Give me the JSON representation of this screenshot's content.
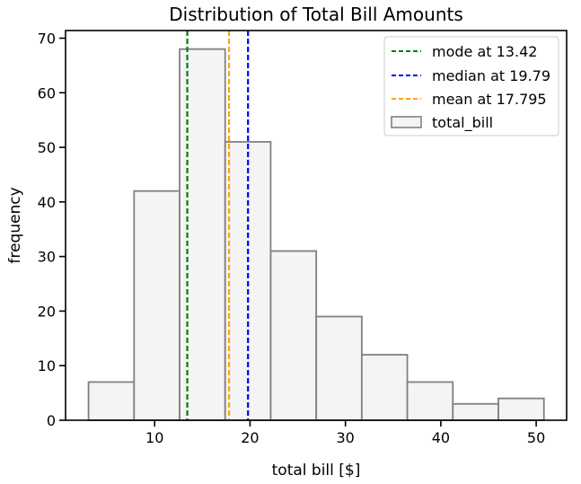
{
  "chart_data": {
    "type": "bar",
    "title": "Distribution of Total Bill Amounts",
    "xlabel": "total bill [$]",
    "ylabel": "frequency",
    "xlim": [
      0.66,
      53.19
    ],
    "ylim": [
      0,
      71.4
    ],
    "xticks": [
      10,
      20,
      30,
      40,
      50
    ],
    "yticks": [
      0,
      10,
      20,
      30,
      40,
      50,
      60,
      70
    ],
    "grid": false,
    "legend_position": "top-right",
    "histogram": {
      "name": "total_bill",
      "bin_edges": [
        3.07,
        7.844,
        12.618,
        17.392,
        22.166,
        26.94,
        31.714,
        36.488,
        41.262,
        46.036,
        50.81
      ],
      "counts": [
        7,
        42,
        68,
        51,
        31,
        19,
        12,
        7,
        3,
        4
      ],
      "fill": "#f4f4f4",
      "edge": "#808080"
    },
    "reference_lines": [
      {
        "label": "mode at 13.42",
        "x": 13.42,
        "color": "#008000"
      },
      {
        "label": "median at 19.79",
        "x": 19.79,
        "color": "#0000ff"
      },
      {
        "label": "mean at 17.795",
        "x": 17.795,
        "color": "#ffa500"
      }
    ]
  }
}
